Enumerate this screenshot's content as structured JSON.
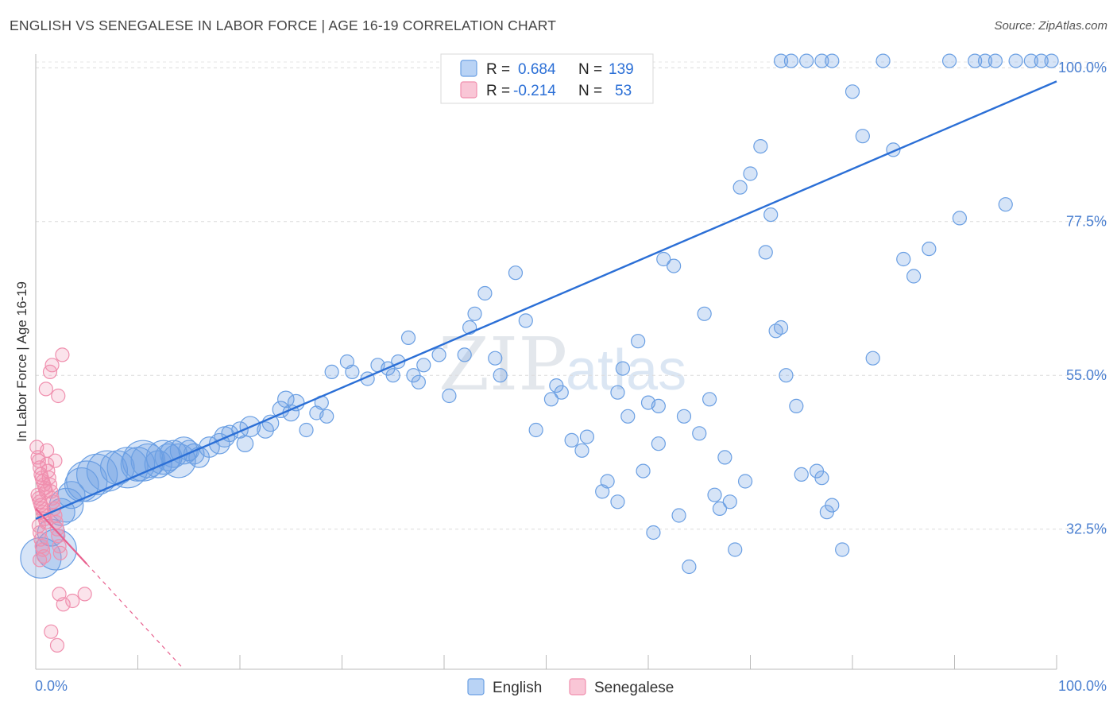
{
  "title": "ENGLISH VS SENEGALESE IN LABOR FORCE | AGE 16-19 CORRELATION CHART",
  "source": "Source: ZipAtlas.com",
  "watermark": {
    "zip": "ZIP",
    "atlas": "atlas"
  },
  "colors": {
    "english": "#6a9fe3",
    "english_line": "#2b6fd6",
    "senegalese": "#f08fae",
    "senegalese_line": "#e8608e",
    "tick": "#4a7fd0"
  },
  "legend_box": {
    "rows": [
      {
        "r_label": "R =",
        "r_value": "0.684",
        "n_label": "N =",
        "n_value": "139"
      },
      {
        "r_label": "R =",
        "r_value": "-0.214",
        "n_label": "N =",
        "n_value": "53"
      }
    ]
  },
  "bottom_legend": [
    {
      "label": "English"
    },
    {
      "label": "Senegalese"
    }
  ],
  "chart_data": {
    "type": "scatter",
    "title": "ENGLISH VS SENEGALESE IN LABOR FORCE | AGE 16-19 CORRELATION CHART",
    "xlabel": "",
    "ylabel": "In Labor Force | Age 16-19",
    "xlim": [
      0,
      100
    ],
    "ylim": [
      12,
      102
    ],
    "x_tick_labels": [
      "0.0%",
      "100.0%"
    ],
    "y_ticks": [
      32.5,
      55.0,
      77.5,
      100.0
    ],
    "y_tick_labels": [
      "32.5%",
      "55.0%",
      "77.5%",
      "100.0%"
    ],
    "series": [
      {
        "name": "English",
        "r": 0.684,
        "n": 139,
        "trend": {
          "x": [
            0,
            100
          ],
          "y": [
            34.0,
            98.0
          ]
        },
        "points": [
          [
            0.5,
            28.3,
            3
          ],
          [
            1.5,
            32.0,
            2
          ],
          [
            2.0,
            29.5,
            3
          ],
          [
            2.5,
            35.0,
            2
          ],
          [
            3.0,
            36.0,
            2.5
          ],
          [
            3.5,
            37.5,
            2
          ],
          [
            4.5,
            39.0,
            2.5
          ],
          [
            5.0,
            39.5,
            3
          ],
          [
            6.0,
            40.5,
            3
          ],
          [
            7.0,
            41.0,
            3
          ],
          [
            8.0,
            41.5,
            2.5
          ],
          [
            9.0,
            41.5,
            3
          ],
          [
            10.0,
            42.0,
            2.5
          ],
          [
            10.5,
            42.5,
            3
          ],
          [
            11.0,
            42.5,
            2.5
          ],
          [
            12.0,
            42.0,
            2
          ],
          [
            12.5,
            43.0,
            2.5
          ],
          [
            13.0,
            43.0,
            2
          ],
          [
            13.5,
            43.5,
            2
          ],
          [
            14.0,
            42.5,
            2.5
          ],
          [
            14.5,
            44.0,
            2
          ],
          [
            15.0,
            44.0,
            1.5
          ],
          [
            15.5,
            43.5,
            1.5
          ],
          [
            16.0,
            43.0,
            1.5
          ],
          [
            17.0,
            44.5,
            1.5
          ],
          [
            18.0,
            45.0,
            1.5
          ],
          [
            18.5,
            46.0,
            1.5
          ],
          [
            19.0,
            46.5,
            1.2
          ],
          [
            20.0,
            47.0,
            1.2
          ],
          [
            21.0,
            47.5,
            1.5
          ],
          [
            20.5,
            45.0,
            1.2
          ],
          [
            22.5,
            47.0,
            1.2
          ],
          [
            23.0,
            48.0,
            1.2
          ],
          [
            24.0,
            50.0,
            1.2
          ],
          [
            24.5,
            51.5,
            1.2
          ],
          [
            25.5,
            51.0,
            1.2
          ],
          [
            25.0,
            49.5,
            1.2
          ],
          [
            26.5,
            47.0,
            1
          ],
          [
            27.5,
            49.5,
            1
          ],
          [
            28.0,
            51.0,
            1
          ],
          [
            28.5,
            49.0,
            1
          ],
          [
            29.0,
            55.5,
            1
          ],
          [
            30.5,
            57.0,
            1
          ],
          [
            31.0,
            55.5,
            1
          ],
          [
            32.5,
            54.5,
            1
          ],
          [
            33.5,
            56.5,
            1
          ],
          [
            34.5,
            56.0,
            1
          ],
          [
            35.0,
            55.0,
            1
          ],
          [
            35.5,
            57.0,
            1
          ],
          [
            37.0,
            55.0,
            1
          ],
          [
            36.5,
            60.5,
            1
          ],
          [
            37.5,
            54.0,
            1
          ],
          [
            38.0,
            56.5,
            1
          ],
          [
            39.5,
            58.0,
            1
          ],
          [
            40.5,
            52.0,
            1
          ],
          [
            42.0,
            58.0,
            1
          ],
          [
            42.5,
            62.0,
            1
          ],
          [
            43.0,
            64.0,
            1
          ],
          [
            44.0,
            67.0,
            1
          ],
          [
            45.0,
            57.5,
            1
          ],
          [
            45.5,
            55.0,
            1
          ],
          [
            47.0,
            70.0,
            1
          ],
          [
            48.0,
            63.0,
            1
          ],
          [
            49.0,
            47.0,
            1
          ],
          [
            50.5,
            51.5,
            1
          ],
          [
            51.0,
            53.5,
            1
          ],
          [
            51.5,
            52.5,
            1
          ],
          [
            52.5,
            45.5,
            1
          ],
          [
            53.5,
            44.0,
            1
          ],
          [
            54.0,
            46.0,
            1
          ],
          [
            55.5,
            38.0,
            1
          ],
          [
            56.0,
            39.5,
            1
          ],
          [
            57.0,
            36.5,
            1
          ],
          [
            58.0,
            49.0,
            1
          ],
          [
            59.5,
            41.0,
            1
          ],
          [
            60.5,
            32.0,
            1
          ],
          [
            61.0,
            45.0,
            1
          ],
          [
            61.5,
            72.0,
            1
          ],
          [
            62.5,
            71.0,
            1
          ],
          [
            63.0,
            34.5,
            1
          ],
          [
            64.0,
            27.0,
            1
          ],
          [
            65.5,
            64.0,
            1
          ],
          [
            66.5,
            37.5,
            1
          ],
          [
            67.0,
            35.5,
            1
          ],
          [
            68.0,
            36.5,
            1
          ],
          [
            68.5,
            29.5,
            1
          ],
          [
            69.0,
            82.5,
            1
          ],
          [
            70.0,
            84.5,
            1
          ],
          [
            71.0,
            88.5,
            1
          ],
          [
            72.0,
            78.5,
            1
          ],
          [
            72.5,
            61.5,
            1
          ],
          [
            73.0,
            62.0,
            1
          ],
          [
            73.5,
            55.0,
            1
          ],
          [
            74.5,
            50.5,
            1
          ],
          [
            75.0,
            40.5,
            1
          ],
          [
            76.5,
            41.0,
            1
          ],
          [
            77.0,
            40.0,
            1
          ],
          [
            77.5,
            35.0,
            1
          ],
          [
            78.0,
            36.0,
            1
          ],
          [
            79.0,
            29.5,
            1
          ],
          [
            57.0,
            52.5,
            1
          ],
          [
            57.5,
            56.0,
            1
          ],
          [
            59.0,
            60.0,
            1
          ],
          [
            60.0,
            51.0,
            1
          ],
          [
            61.0,
            50.5,
            1
          ],
          [
            63.5,
            49.0,
            1
          ],
          [
            65.0,
            46.5,
            1
          ],
          [
            66.0,
            51.5,
            1
          ],
          [
            67.5,
            43.0,
            1
          ],
          [
            69.5,
            39.5,
            1
          ],
          [
            71.5,
            73.0,
            1
          ],
          [
            73.0,
            101.0,
            1
          ],
          [
            74.0,
            101.0,
            1
          ],
          [
            75.5,
            101.0,
            1
          ],
          [
            77.0,
            101.0,
            1
          ],
          [
            78.0,
            101.0,
            1
          ],
          [
            80.0,
            96.5,
            1
          ],
          [
            81.0,
            90.0,
            1
          ],
          [
            82.0,
            57.5,
            1
          ],
          [
            83.0,
            101.0,
            1
          ],
          [
            84.0,
            88.0,
            1
          ],
          [
            85.0,
            72.0,
            1
          ],
          [
            86.0,
            69.5,
            1
          ],
          [
            87.5,
            73.5,
            1
          ],
          [
            89.5,
            101.0,
            1
          ],
          [
            90.5,
            78.0,
            1
          ],
          [
            92.0,
            101.0,
            1
          ],
          [
            93.0,
            101.0,
            1
          ],
          [
            94.0,
            101.0,
            1
          ],
          [
            95.0,
            80.0,
            1
          ],
          [
            96.0,
            101.0,
            1
          ],
          [
            97.5,
            101.0,
            1
          ],
          [
            98.5,
            101.0,
            1
          ],
          [
            99.5,
            101.0,
            1
          ]
        ]
      },
      {
        "name": "Senegalese",
        "r": -0.214,
        "n": 53,
        "trend": {
          "x": [
            0,
            14.5
          ],
          "y": [
            35.5,
            12.0
          ],
          "solid_until_x": 5.0
        },
        "points": [
          [
            0.1,
            44.5
          ],
          [
            0.2,
            43.0
          ],
          [
            0.3,
            42.5
          ],
          [
            0.4,
            41.5
          ],
          [
            0.5,
            40.5
          ],
          [
            0.6,
            40.0
          ],
          [
            0.7,
            39.5
          ],
          [
            0.8,
            39.0
          ],
          [
            0.9,
            38.5
          ],
          [
            1.0,
            38.0
          ],
          [
            0.2,
            37.5
          ],
          [
            0.3,
            37.0
          ],
          [
            0.4,
            36.5
          ],
          [
            0.5,
            36.0
          ],
          [
            0.6,
            35.5
          ],
          [
            0.7,
            35.0
          ],
          [
            0.8,
            34.5
          ],
          [
            0.9,
            34.0
          ],
          [
            1.0,
            33.5
          ],
          [
            0.3,
            33.0
          ],
          [
            0.4,
            32.0
          ],
          [
            0.5,
            31.0
          ],
          [
            0.6,
            30.0
          ],
          [
            0.7,
            29.5
          ],
          [
            0.8,
            28.5
          ],
          [
            0.4,
            28.0
          ],
          [
            1.1,
            42.0
          ],
          [
            1.2,
            41.0
          ],
          [
            1.3,
            40.0
          ],
          [
            1.4,
            39.0
          ],
          [
            1.5,
            38.0
          ],
          [
            1.6,
            37.0
          ],
          [
            1.7,
            36.5
          ],
          [
            1.8,
            35.5
          ],
          [
            1.9,
            34.5
          ],
          [
            2.0,
            33.5
          ],
          [
            2.1,
            32.5
          ],
          [
            2.2,
            31.5
          ],
          [
            2.3,
            30.0
          ],
          [
            2.4,
            29.0
          ],
          [
            1.0,
            53.0
          ],
          [
            1.4,
            55.5
          ],
          [
            1.6,
            56.5
          ],
          [
            2.2,
            52.0
          ],
          [
            2.6,
            58.0
          ],
          [
            1.1,
            44.0
          ],
          [
            1.9,
            42.5
          ],
          [
            2.3,
            23.0
          ],
          [
            2.7,
            21.5
          ],
          [
            3.6,
            22.0
          ],
          [
            4.8,
            23.0
          ],
          [
            1.5,
            17.5
          ],
          [
            2.1,
            15.5
          ]
        ]
      }
    ]
  }
}
